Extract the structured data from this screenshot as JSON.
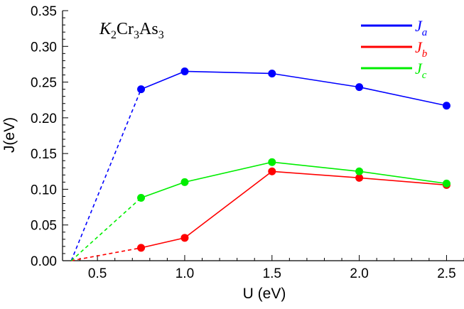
{
  "chart_data": {
    "type": "line",
    "title": "",
    "xlabel": "U (eV)",
    "ylabel": "J(eV)",
    "xlim": [
      0.3,
      2.6
    ],
    "ylim": [
      0.0,
      0.35
    ],
    "x_ticks": [
      "0.5",
      "1.0",
      "1.5",
      "2.0",
      "2.5"
    ],
    "y_ticks": [
      "0.00",
      "0.05",
      "0.10",
      "0.15",
      "0.20",
      "0.25",
      "0.30",
      "0.35"
    ],
    "grid": false,
    "legend_position": "top-right",
    "compound_label": {
      "k": "K",
      "k_sub": "2",
      "cr": "Cr",
      "cr_sub": "3",
      "as": "As",
      "as_sub": "3"
    },
    "dashed_origin": [
      0.35,
      0.0
    ],
    "series": [
      {
        "name": "J",
        "subscript": "a",
        "color": "#0000ff",
        "x": [
          0.75,
          1.0,
          1.5,
          2.0,
          2.5
        ],
        "values": [
          0.24,
          0.265,
          0.262,
          0.243,
          0.217
        ]
      },
      {
        "name": "J",
        "subscript": "b",
        "color": "#ff0000",
        "x": [
          0.75,
          1.0,
          1.5,
          2.0,
          2.5
        ],
        "values": [
          0.018,
          0.032,
          0.125,
          0.116,
          0.106
        ]
      },
      {
        "name": "J",
        "subscript": "c",
        "color": "#00ee00",
        "x": [
          0.75,
          1.0,
          1.5,
          2.0,
          2.5
        ],
        "values": [
          0.088,
          0.11,
          0.138,
          0.125,
          0.108
        ]
      }
    ]
  }
}
